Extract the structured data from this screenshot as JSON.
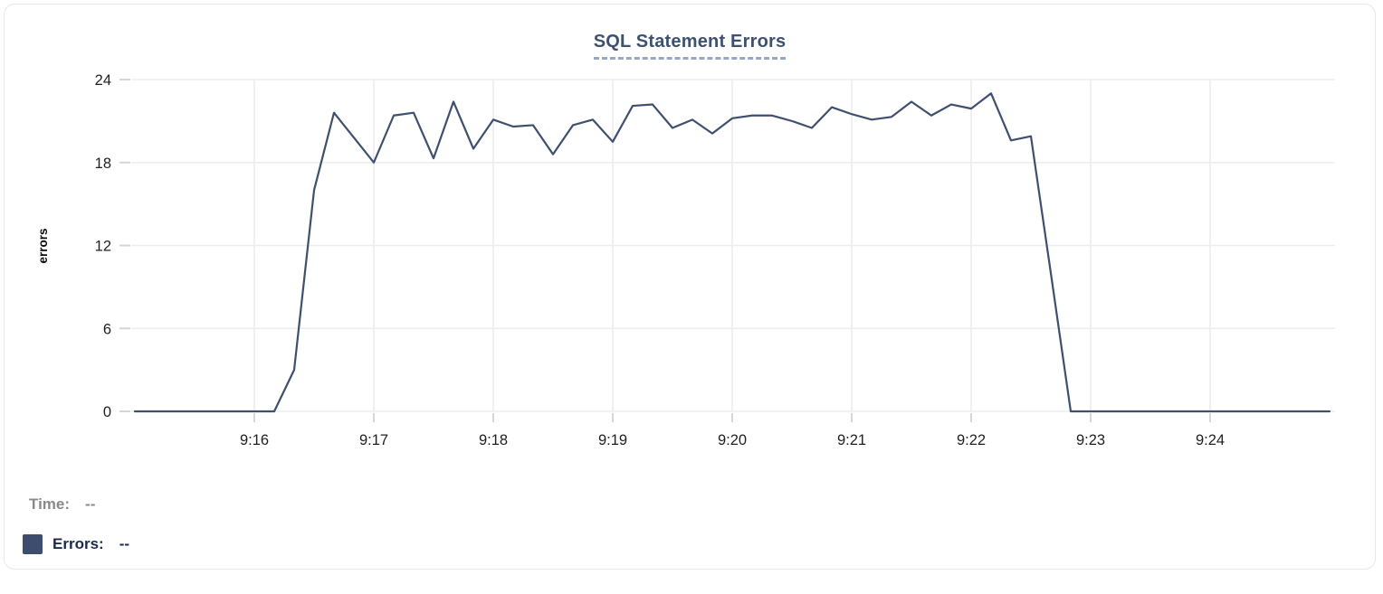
{
  "card": {
    "title": "SQL Statement Errors"
  },
  "chart_data": {
    "type": "line",
    "title": "SQL Statement Errors",
    "xlabel": "",
    "ylabel": "errors",
    "x_tick_labels": [
      "9:16",
      "9:17",
      "9:18",
      "9:19",
      "9:20",
      "9:21",
      "9:22",
      "9:23",
      "9:24"
    ],
    "y_ticks": [
      0,
      6,
      12,
      18,
      24
    ],
    "ylim": [
      0,
      24
    ],
    "x_start_time": "9:15:00",
    "x_end_time": "9:25:00",
    "sample_interval_seconds": 10,
    "grid": true,
    "legend_position": "below-as-tooltip-readout",
    "series": [
      {
        "name": "Errors",
        "color": "#3F4F6E",
        "values": [
          0,
          0,
          0,
          0,
          0,
          0,
          0,
          0,
          3,
          16,
          21.6,
          19.8,
          18,
          21.4,
          21.6,
          18.3,
          22.4,
          19,
          21.1,
          20.6,
          20.7,
          18.6,
          20.7,
          21.1,
          19.5,
          22.1,
          22.2,
          20.5,
          21.1,
          20.1,
          21.2,
          21.4,
          21.4,
          21,
          20.5,
          22,
          21.5,
          21.1,
          21.3,
          22.4,
          21.4,
          22.2,
          21.9,
          23,
          19.6,
          19.9,
          10,
          0,
          0,
          0,
          0,
          0,
          0,
          0,
          0,
          0,
          0,
          0,
          0,
          0,
          0
        ]
      }
    ]
  },
  "tooltip_legend": {
    "time_label": "Time:",
    "time_value": "--",
    "errors_label": "Errors:",
    "errors_value": "--",
    "swatch_color": "#3E4D6E"
  },
  "colors": {
    "line": "#3F4F6E",
    "title": "#3D5170",
    "title_underline": "#97A8C4",
    "grid": "#EDEDEF",
    "tick_mark": "#D6D6D9",
    "axis_text": "#1F1F21",
    "y_axis_label": "#0A0A0A",
    "card_border": "#E7E7EA",
    "time_label": "#8A8A8E",
    "errors_label": "#1B2951"
  }
}
